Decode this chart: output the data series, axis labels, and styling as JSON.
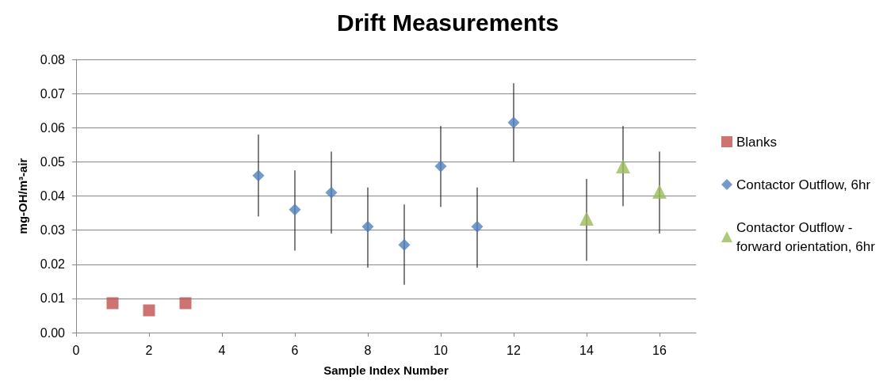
{
  "chart_data": {
    "type": "scatter",
    "title": "Drift Measurements",
    "xlabel": "Sample Index Number",
    "ylabel": "mg-OH/m³-air",
    "xlim": [
      0,
      17
    ],
    "xticks": [
      0,
      2,
      4,
      6,
      8,
      10,
      12,
      14,
      16
    ],
    "ylim": [
      0,
      0.08
    ],
    "yticks": [
      {
        "value": 0,
        "label": "0.00"
      },
      {
        "value": 0.01,
        "label": "0.01"
      },
      {
        "value": 0.02,
        "label": "0.02"
      },
      {
        "value": 0.03,
        "label": "0.03"
      },
      {
        "value": 0.04,
        "label": "0.04"
      },
      {
        "value": 0.05,
        "label": "0.05"
      },
      {
        "value": 0.06,
        "label": "0.06"
      },
      {
        "value": 0.07,
        "label": "0.07"
      },
      {
        "value": 0.08,
        "label": "0.08"
      }
    ],
    "grid": "y",
    "legend": "right",
    "series": [
      {
        "name": "Blanks",
        "color": "#c0504d",
        "marker": "square",
        "x": [
          1,
          2,
          3
        ],
        "values": [
          0.0086,
          0.0065,
          0.0086
        ]
      },
      {
        "name": "Contactor Outflow, 6hr",
        "color": "#4f81bd",
        "marker": "diamond",
        "x": [
          5,
          6,
          7,
          8,
          9,
          10,
          11,
          12
        ],
        "values": [
          0.046,
          0.036,
          0.041,
          0.031,
          0.0257,
          0.0487,
          0.031,
          0.0615
        ],
        "errors": [
          [
            0.034,
            0.058
          ],
          [
            0.024,
            0.0475
          ],
          [
            0.029,
            0.053
          ],
          [
            0.019,
            0.0425
          ],
          [
            0.014,
            0.0375
          ],
          [
            0.0368,
            0.0605
          ],
          [
            0.019,
            0.0425
          ],
          [
            0.05,
            0.073
          ]
        ]
      },
      {
        "name": "Contactor Outflow - forward orientation, 6hr",
        "color": "#9bbb59",
        "marker": "triangle",
        "x": [
          14,
          15,
          16
        ],
        "values": [
          0.0334,
          0.0487,
          0.0413
        ],
        "errors": [
          [
            0.021,
            0.045
          ],
          [
            0.037,
            0.0605
          ],
          [
            0.029,
            0.053
          ]
        ]
      }
    ]
  }
}
